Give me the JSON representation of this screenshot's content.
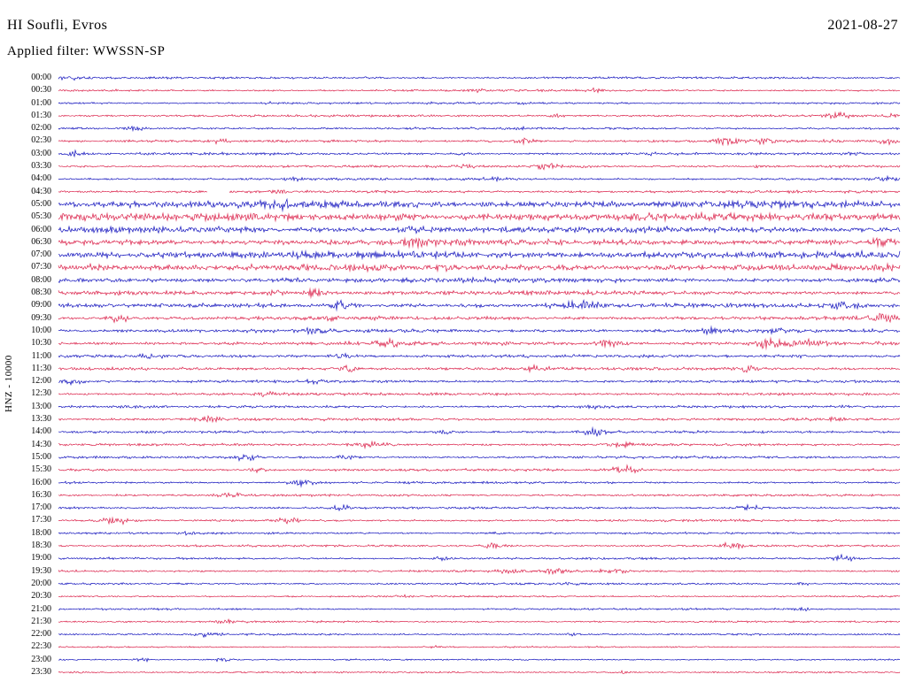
{
  "header": {
    "station": "HI Soufli, Evros",
    "date": "2021-08-27",
    "filter_label": "Applied filter: WWSSN-SP"
  },
  "chart_data": {
    "type": "line",
    "subtype": "helicorder-seismogram",
    "title": "HI Soufli, Evros",
    "xlabel": "",
    "ylabel": "HNZ - 10000",
    "minutes_per_row": 30,
    "grid": false,
    "legend": "none",
    "colors": [
      "#0000b8",
      "#d8103c"
    ],
    "color_rule": "rows alternate blue/red starting with blue at 00:00",
    "bursts_format": "[x_fraction_along_row, extra_amplitude_px, width_px]",
    "gaps_format": "[x_fraction_start, x_fraction_end]",
    "rows": [
      {
        "time": "00:00",
        "amp": 0.7,
        "bursts": [
          [
            0.015,
            1.2,
            12
          ],
          [
            0.37,
            0.6,
            8
          ]
        ],
        "gaps": []
      },
      {
        "time": "00:30",
        "amp": 0.7,
        "bursts": [
          [
            0.5,
            0.8,
            6
          ],
          [
            0.64,
            1.2,
            8
          ]
        ],
        "gaps": []
      },
      {
        "time": "01:00",
        "amp": 0.7,
        "bursts": [
          [
            0.25,
            0.5,
            6
          ],
          [
            0.55,
            0.6,
            6
          ]
        ],
        "gaps": []
      },
      {
        "time": "01:30",
        "amp": 0.75,
        "bursts": [
          [
            0.595,
            1.0,
            7
          ],
          [
            0.925,
            1.8,
            9
          ],
          [
            0.99,
            1.2,
            7
          ]
        ],
        "gaps": []
      },
      {
        "time": "02:00",
        "amp": 0.75,
        "bursts": [
          [
            0.09,
            1.2,
            8
          ],
          [
            0.547,
            0.8,
            6
          ]
        ],
        "gaps": []
      },
      {
        "time": "02:30",
        "amp": 0.8,
        "bursts": [
          [
            0.19,
            1.2,
            8
          ],
          [
            0.515,
            1.0,
            7
          ],
          [
            0.555,
            2.2,
            8
          ],
          [
            0.795,
            2.8,
            10
          ],
          [
            0.84,
            2.2,
            9
          ],
          [
            0.92,
            1.0,
            6
          ],
          [
            0.985,
            2.6,
            9
          ]
        ],
        "gaps": []
      },
      {
        "time": "03:00",
        "amp": 0.8,
        "bursts": [
          [
            0.02,
            1.8,
            7
          ],
          [
            0.48,
            0.9,
            6
          ],
          [
            0.7,
            0.8,
            6
          ],
          [
            0.945,
            0.9,
            6
          ]
        ],
        "gaps": []
      },
      {
        "time": "03:30",
        "amp": 0.8,
        "bursts": [
          [
            0.48,
            1.4,
            8
          ],
          [
            0.58,
            2.6,
            9
          ],
          [
            0.625,
            1.2,
            6
          ],
          [
            0.83,
            0.8,
            6
          ]
        ],
        "gaps": []
      },
      {
        "time": "04:00",
        "amp": 0.8,
        "bursts": [
          [
            0.28,
            0.7,
            6
          ],
          [
            0.52,
            1.2,
            8
          ],
          [
            0.985,
            1.4,
            7
          ]
        ],
        "gaps": []
      },
      {
        "time": "04:30",
        "amp": 0.85,
        "bursts": [
          [
            0.26,
            1.0,
            7
          ]
        ],
        "gaps": [
          [
            0.177,
            0.203
          ]
        ]
      },
      {
        "time": "05:00",
        "amp": 2.4,
        "bursts": [
          [
            0.263,
            2.5,
            10
          ]
        ],
        "gaps": []
      },
      {
        "time": "05:30",
        "amp": 2.6,
        "bursts": [
          [
            0.4,
            1.0,
            12
          ]
        ],
        "gaps": []
      },
      {
        "time": "06:00",
        "amp": 2.0,
        "bursts": [
          [
            0.42,
            1.8,
            10
          ]
        ],
        "gaps": []
      },
      {
        "time": "06:30",
        "amp": 2.1,
        "bursts": [
          [
            0.424,
            2.6,
            9
          ],
          [
            0.98,
            1.5,
            10
          ]
        ],
        "gaps": []
      },
      {
        "time": "07:00",
        "amp": 2.4,
        "bursts": [],
        "gaps": []
      },
      {
        "time": "07:30",
        "amp": 2.2,
        "bursts": [
          [
            0.04,
            1.0,
            8
          ]
        ],
        "gaps": []
      },
      {
        "time": "08:00",
        "amp": 1.6,
        "bursts": [
          [
            0.28,
            1.8,
            9
          ]
        ],
        "gaps": []
      },
      {
        "time": "08:30",
        "amp": 1.4,
        "bursts": [
          [
            0.258,
            1.5,
            8
          ],
          [
            0.305,
            3.2,
            9
          ]
        ],
        "gaps": []
      },
      {
        "time": "09:00",
        "amp": 1.4,
        "bursts": [
          [
            0.337,
            2.6,
            9
          ],
          [
            0.49,
            1.0,
            6
          ],
          [
            0.616,
            3.4,
            16
          ],
          [
            0.937,
            3.0,
            10
          ]
        ],
        "gaps": []
      },
      {
        "time": "09:30",
        "amp": 1.2,
        "bursts": [
          [
            0.074,
            2.8,
            9
          ],
          [
            0.326,
            1.0,
            6
          ],
          [
            0.979,
            2.8,
            10
          ]
        ],
        "gaps": []
      },
      {
        "time": "10:00",
        "amp": 1.2,
        "bursts": [
          [
            0.305,
            1.6,
            8
          ],
          [
            0.774,
            1.6,
            8
          ],
          [
            0.85,
            1.2,
            7
          ]
        ],
        "gaps": []
      },
      {
        "time": "10:30",
        "amp": 1.2,
        "bursts": [
          [
            0.39,
            2.6,
            9
          ],
          [
            0.653,
            2.2,
            9
          ],
          [
            0.842,
            3.0,
            10
          ],
          [
            0.871,
            3.0,
            9
          ],
          [
            0.898,
            2.0,
            8
          ]
        ],
        "gaps": []
      },
      {
        "time": "11:00",
        "amp": 1.0,
        "bursts": [
          [
            0.11,
            1.4,
            8
          ],
          [
            0.337,
            1.6,
            8
          ],
          [
            0.879,
            1.0,
            6
          ]
        ],
        "gaps": []
      },
      {
        "time": "11:30",
        "amp": 1.0,
        "bursts": [
          [
            0.342,
            2.4,
            10
          ],
          [
            0.568,
            1.8,
            8
          ],
          [
            0.816,
            2.2,
            9
          ]
        ],
        "gaps": []
      },
      {
        "time": "12:00",
        "amp": 0.9,
        "bursts": [
          [
            0.016,
            1.8,
            9
          ],
          [
            0.3,
            1.4,
            8
          ]
        ],
        "gaps": []
      },
      {
        "time": "12:30",
        "amp": 0.9,
        "bursts": [
          [
            0.247,
            1.4,
            8
          ],
          [
            0.516,
            0.9,
            6
          ]
        ],
        "gaps": []
      },
      {
        "time": "13:00",
        "amp": 0.85,
        "bursts": [
          [
            0.089,
            1.3,
            7
          ],
          [
            0.637,
            1.6,
            8
          ],
          [
            0.932,
            1.0,
            6
          ]
        ],
        "gaps": []
      },
      {
        "time": "13:30",
        "amp": 0.85,
        "bursts": [
          [
            0.179,
            2.0,
            9
          ],
          [
            0.921,
            1.3,
            7
          ]
        ],
        "gaps": []
      },
      {
        "time": "14:00",
        "amp": 0.8,
        "bursts": [
          [
            0.458,
            1.3,
            8
          ],
          [
            0.637,
            2.4,
            9
          ]
        ],
        "gaps": []
      },
      {
        "time": "14:30",
        "amp": 0.8,
        "bursts": [
          [
            0.374,
            2.0,
            14
          ],
          [
            0.668,
            2.4,
            10
          ]
        ],
        "gaps": []
      },
      {
        "time": "15:00",
        "amp": 0.8,
        "bursts": [
          [
            0.221,
            2.4,
            9
          ],
          [
            0.342,
            1.4,
            8
          ]
        ],
        "gaps": []
      },
      {
        "time": "15:30",
        "amp": 0.8,
        "bursts": [
          [
            0.237,
            1.4,
            8
          ],
          [
            0.674,
            2.8,
            10
          ]
        ],
        "gaps": []
      },
      {
        "time": "16:00",
        "amp": 0.75,
        "bursts": [
          [
            0.289,
            2.4,
            10
          ]
        ],
        "gaps": []
      },
      {
        "time": "16:30",
        "amp": 0.75,
        "bursts": [
          [
            0.205,
            1.6,
            8
          ]
        ],
        "gaps": []
      },
      {
        "time": "17:00",
        "amp": 0.75,
        "bursts": [
          [
            0.337,
            1.6,
            8
          ],
          [
            0.821,
            2.6,
            9
          ]
        ],
        "gaps": []
      },
      {
        "time": "17:30",
        "amp": 0.75,
        "bursts": [
          [
            0.066,
            2.8,
            10
          ],
          [
            0.274,
            2.0,
            8
          ]
        ],
        "gaps": []
      },
      {
        "time": "18:00",
        "amp": 0.7,
        "bursts": [
          [
            0.153,
            0.9,
            6
          ],
          [
            0.52,
            0.7,
            6
          ]
        ],
        "gaps": []
      },
      {
        "time": "18:30",
        "amp": 0.7,
        "bursts": [
          [
            0.516,
            2.4,
            9
          ],
          [
            0.8,
            2.2,
            9
          ]
        ],
        "gaps": []
      },
      {
        "time": "19:00",
        "amp": 0.7,
        "bursts": [
          [
            0.458,
            1.2,
            7
          ],
          [
            0.932,
            2.4,
            9
          ]
        ],
        "gaps": []
      },
      {
        "time": "19:30",
        "amp": 0.7,
        "bursts": [
          [
            0.537,
            1.8,
            8
          ],
          [
            0.593,
            2.8,
            9
          ],
          [
            0.66,
            2.2,
            9
          ]
        ],
        "gaps": []
      },
      {
        "time": "20:00",
        "amp": 0.7,
        "bursts": [
          [
            0.605,
            1.2,
            7
          ],
          [
            0.884,
            0.9,
            6
          ]
        ],
        "gaps": []
      },
      {
        "time": "20:30",
        "amp": 0.6,
        "bursts": [
          [
            0.405,
            0.8,
            6
          ]
        ],
        "gaps": []
      },
      {
        "time": "21:00",
        "amp": 0.6,
        "bursts": [
          [
            0.884,
            1.2,
            7
          ]
        ],
        "gaps": []
      },
      {
        "time": "21:30",
        "amp": 0.6,
        "bursts": [
          [
            0.2,
            1.6,
            8
          ]
        ],
        "gaps": []
      },
      {
        "time": "22:00",
        "amp": 0.6,
        "bursts": [
          [
            0.179,
            2.0,
            9
          ],
          [
            0.61,
            0.9,
            6
          ]
        ],
        "gaps": []
      },
      {
        "time": "22:30",
        "amp": 0.5,
        "bursts": [
          [
            0.45,
            0.5,
            6
          ]
        ],
        "gaps": []
      },
      {
        "time": "23:00",
        "amp": 0.5,
        "bursts": [
          [
            0.1,
            1.2,
            7
          ],
          [
            0.195,
            1.2,
            7
          ]
        ],
        "gaps": []
      },
      {
        "time": "23:30",
        "amp": 0.55,
        "bursts": [
          [
            0.02,
            0.8,
            6
          ],
          [
            0.668,
            1.0,
            7
          ]
        ],
        "gaps": []
      }
    ]
  }
}
